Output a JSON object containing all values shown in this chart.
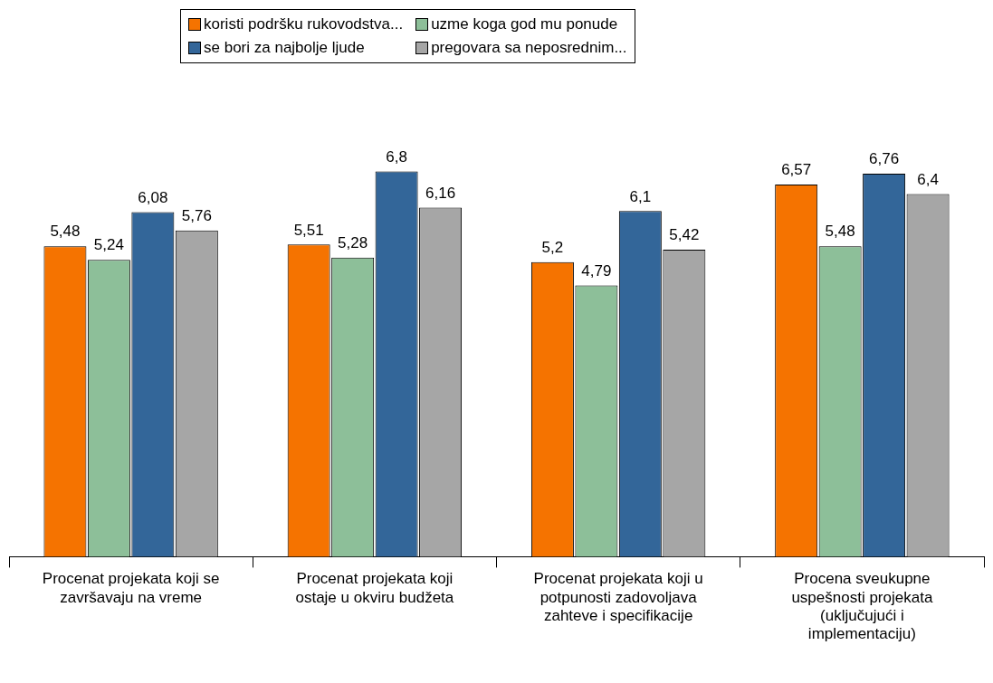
{
  "chart_data": {
    "type": "bar",
    "categories": [
      "Procenat projekata koji se završavaju na vreme",
      "Procenat projekata koji ostaje u okviru budžeta",
      "Procenat projekata koji u potpunosti zadovoljava zahteve i specifikacije",
      "Procena sveukupne uspešnosti projekata (uključujući i implementaciju)"
    ],
    "series": [
      {
        "name": "koristi podršku rukovodstva...",
        "color": "#f57300",
        "values": [
          5.48,
          5.51,
          5.2,
          6.57
        ],
        "value_labels": [
          "5,48",
          "5,51",
          "5,2",
          "6,57"
        ]
      },
      {
        "name": "uzme koga god mu ponude",
        "color": "#8dbf99",
        "values": [
          5.24,
          5.28,
          4.79,
          5.48
        ],
        "value_labels": [
          "5,24",
          "5,28",
          "4,79",
          "5,48"
        ]
      },
      {
        "name": "se bori za najbolje ljude",
        "color": "#336699",
        "values": [
          6.08,
          6.8,
          6.1,
          6.76
        ],
        "value_labels": [
          "6,08",
          "6,8",
          "6,1",
          "6,76"
        ]
      },
      {
        "name": "pregovara sa neposrednim...",
        "color": "#a6a6a6",
        "values": [
          5.76,
          6.16,
          5.42,
          6.4
        ],
        "value_labels": [
          "5,76",
          "6,16",
          "5,42",
          "6,4"
        ]
      }
    ],
    "legend": "top",
    "grid": false,
    "tick_labels": "x"
  }
}
